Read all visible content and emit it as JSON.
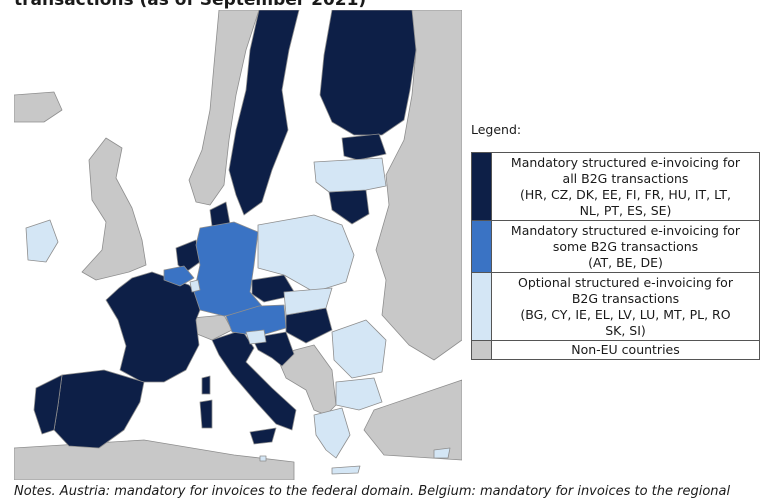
{
  "title": "transactions (as of September 2021)",
  "colors": {
    "sea": "#ffffff",
    "non_eu": "#c8c8c8",
    "mandatory_all": "#0d1f47",
    "mandatory_some": "#3a73c4",
    "optional": "#d4e6f5",
    "border": "#8e8e8e"
  },
  "legend": {
    "heading": "Legend:",
    "items": [
      {
        "category": "mandatory_all",
        "lines": [
          "Mandatory structured e-invoicing for",
          "all B2G transactions",
          "(HR, CZ, DK, EE, FI, FR, HU, IT, LT,",
          "NL, PT, ES, SE)"
        ]
      },
      {
        "category": "mandatory_some",
        "lines": [
          "Mandatory structured e-invoicing for",
          "some B2G transactions",
          "(AT, BE, DE)"
        ]
      },
      {
        "category": "optional",
        "lines": [
          "Optional structured e-invoicing for",
          "B2G transactions",
          "(BG, CY, IE, EL, LV, LU, MT, PL, RO",
          "SK, SI)"
        ]
      },
      {
        "category": "non_eu",
        "lines": [
          "Non-EU countries"
        ]
      }
    ]
  },
  "notes": "Notes. Austria: mandatory for invoices to the federal domain. Belgium: mandatory for invoices to the regional"
}
